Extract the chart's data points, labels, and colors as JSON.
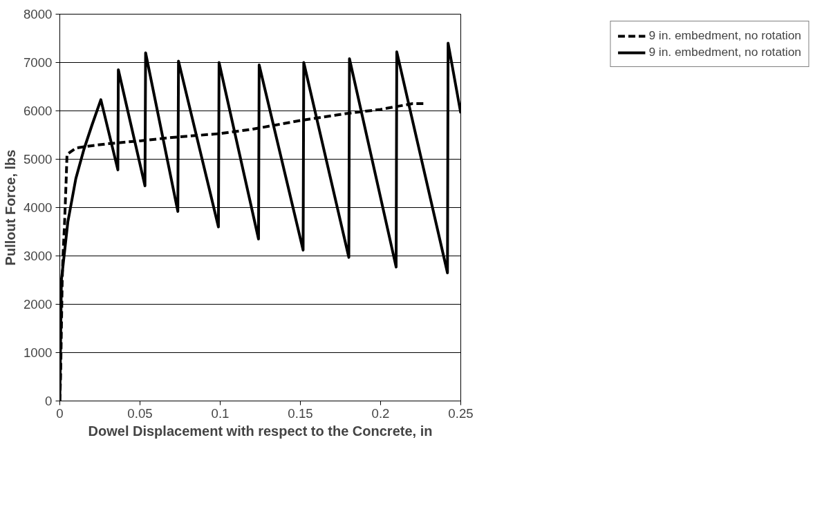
{
  "chart_data": {
    "type": "line",
    "xlabel": "Dowel Displacement with respect to the Concrete, in",
    "ylabel": "Pullout Force, lbs",
    "xlim": [
      0,
      0.25
    ],
    "xticks": [
      0,
      0.05,
      0.1,
      0.15,
      0.2,
      0.25
    ],
    "ylim": [
      0,
      8000
    ],
    "yticks": [
      0,
      1000,
      2000,
      3000,
      4000,
      5000,
      6000,
      7000,
      8000
    ],
    "grid": "y",
    "legend": "right",
    "series": [
      {
        "name": "9 in. embedment, no rotation",
        "color": "#000000",
        "line_style": "dashed",
        "x": [
          0,
          0.0005,
          0.001,
          0.0015,
          0.002,
          0.003,
          0.004,
          0.0045,
          0.01,
          0.02,
          0.03,
          0.05,
          0.07,
          0.1,
          0.12,
          0.15,
          0.18,
          0.2,
          0.22,
          0.227
        ],
        "values": [
          0,
          500,
          1500,
          2500,
          3000,
          3700,
          4600,
          5100,
          5230,
          5280,
          5320,
          5380,
          5450,
          5530,
          5620,
          5800,
          5950,
          6030,
          6150,
          6150
        ]
      },
      {
        "name": "9 in. embedment, no rotation",
        "color": "#000000",
        "line_style": "solid",
        "x": [
          0,
          0.001,
          0.005,
          0.01,
          0.015,
          0.02,
          0.0256,
          0.0362,
          0.0365,
          0.0531,
          0.0535,
          0.0736,
          0.074,
          0.0989,
          0.0993,
          0.1239,
          0.1243,
          0.1517,
          0.1521,
          0.1802,
          0.1806,
          0.2097,
          0.2101,
          0.2417,
          0.2421,
          0.25
        ],
        "values": [
          0,
          2500,
          3700,
          4600,
          5200,
          5700,
          6230,
          4780,
          6850,
          4450,
          7200,
          3920,
          7030,
          3600,
          7000,
          3350,
          6950,
          3120,
          7000,
          2970,
          7080,
          2770,
          7220,
          2650,
          7400,
          5950
        ]
      }
    ]
  }
}
